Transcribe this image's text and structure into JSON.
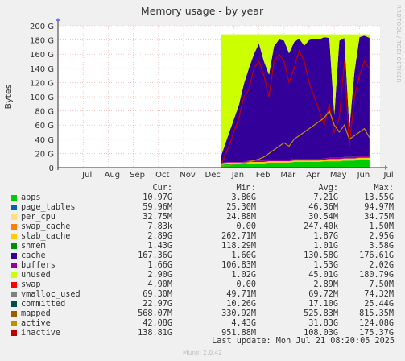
{
  "chart_data": {
    "type": "area",
    "title": "Memory usage - by year",
    "ylabel": "Bytes",
    "ylim": [
      0,
      200
    ],
    "y_ticks": [
      "0",
      "20 G",
      "40 G",
      "60 G",
      "80 G",
      "100 G",
      "120 G",
      "140 G",
      "160 G",
      "180 G",
      "200 G"
    ],
    "x_ticks": [
      "Jul",
      "Aug",
      "Sep",
      "Oct",
      "Nov",
      "Dec",
      "Jan",
      "Feb",
      "Mar",
      "Apr",
      "May",
      "Jun",
      "Jul"
    ],
    "stacked_series": [
      "apps",
      "page_tables",
      "per_cpu",
      "swap_cache",
      "slab_cache",
      "shmem",
      "cache",
      "buffers",
      "unused",
      "swap"
    ],
    "line_series": [
      "vmalloc_used",
      "committed",
      "mapped",
      "active",
      "inactive"
    ],
    "x_months": [
      6.5,
      6.8,
      7.0,
      7.2,
      7.4,
      7.6,
      7.8,
      8.0,
      8.2,
      8.4,
      8.6,
      8.8,
      9.0,
      9.2,
      9.4,
      9.6,
      9.8,
      10.0,
      10.2,
      10.4,
      10.6,
      10.8,
      11.0,
      11.2,
      11.4,
      11.6,
      11.8,
      12.0,
      12.2,
      12.4
    ],
    "series_values": {
      "apps": [
        4,
        5,
        5,
        5,
        5,
        6,
        6,
        6,
        6,
        7,
        7,
        7,
        7,
        7,
        8,
        8,
        8,
        8,
        8,
        8,
        9,
        9,
        9,
        9,
        10,
        10,
        10,
        11,
        11,
        11
      ],
      "slab_cache": [
        2,
        2,
        2,
        2,
        2,
        2,
        2,
        2,
        2,
        2,
        2,
        2,
        2,
        2,
        2,
        2,
        2,
        2,
        2,
        2,
        2,
        3,
        3,
        3,
        3,
        3,
        3,
        3,
        3,
        3
      ],
      "buffers": [
        1,
        1,
        1,
        1,
        1,
        2,
        2,
        2,
        2,
        2,
        2,
        2,
        2,
        2,
        2,
        2,
        2,
        2,
        2,
        2,
        2,
        2,
        2,
        2,
        2,
        2,
        2,
        2,
        2,
        2
      ],
      "cache": [
        10,
        40,
        60,
        80,
        110,
        130,
        150,
        165,
        140,
        120,
        160,
        170,
        168,
        150,
        165,
        170,
        160,
        168,
        170,
        169,
        171,
        169,
        60,
        165,
        168,
        40,
        120,
        168,
        170,
        167
      ],
      "inactive": [
        5,
        30,
        50,
        70,
        100,
        110,
        140,
        150,
        130,
        100,
        150,
        160,
        150,
        120,
        140,
        165,
        150,
        120,
        100,
        80,
        60,
        90,
        50,
        70,
        150,
        30,
        100,
        130,
        150,
        139
      ],
      "active": [
        2,
        3,
        5,
        5,
        6,
        8,
        10,
        12,
        15,
        20,
        25,
        30,
        35,
        30,
        40,
        45,
        50,
        55,
        60,
        65,
        70,
        80,
        60,
        50,
        60,
        40,
        45,
        50,
        55,
        42
      ]
    },
    "total_memory": 188
  },
  "legend": {
    "headers": {
      "cur": "Cur:",
      "min": "Min:",
      "avg": "Avg:",
      "max": "Max:"
    },
    "rows": [
      {
        "name": "apps",
        "color": "#00cc00",
        "cur": "10.97G",
        "min": "3.86G",
        "avg": "7.21G",
        "max": "13.55G"
      },
      {
        "name": "page_tables",
        "color": "#0066b3",
        "cur": "59.96M",
        "min": "25.30M",
        "avg": "46.36M",
        "max": "94.97M"
      },
      {
        "name": "per_cpu",
        "color": "#ffe080",
        "cur": "32.75M",
        "min": "24.88M",
        "avg": "30.54M",
        "max": "34.75M"
      },
      {
        "name": "swap_cache",
        "color": "#ff8000",
        "cur": "7.83k",
        "min": "0.00",
        "avg": "247.40k",
        "max": "1.50M"
      },
      {
        "name": "slab_cache",
        "color": "#ffcc00",
        "cur": "2.89G",
        "min": "262.71M",
        "avg": "1.87G",
        "max": "2.95G"
      },
      {
        "name": "shmem",
        "color": "#008f00",
        "cur": "1.43G",
        "min": "118.29M",
        "avg": "1.01G",
        "max": "3.58G"
      },
      {
        "name": "cache",
        "color": "#330099",
        "cur": "167.36G",
        "min": "1.60G",
        "avg": "130.58G",
        "max": "176.61G"
      },
      {
        "name": "buffers",
        "color": "#990099",
        "cur": "1.66G",
        "min": "106.83M",
        "avg": "1.53G",
        "max": "2.02G"
      },
      {
        "name": "unused",
        "color": "#ccff00",
        "cur": "2.90G",
        "min": "1.02G",
        "avg": "45.01G",
        "max": "180.79G"
      },
      {
        "name": "swap",
        "color": "#ff0000",
        "cur": "4.90M",
        "min": "0.00",
        "avg": "2.89M",
        "max": "7.50M"
      },
      {
        "name": "vmalloc_used",
        "color": "#808080",
        "cur": "69.30M",
        "min": "49.71M",
        "avg": "69.72M",
        "max": "74.32M"
      },
      {
        "name": "committed",
        "color": "#004d4d",
        "cur": "22.97G",
        "min": "10.26G",
        "avg": "17.10G",
        "max": "25.44G"
      },
      {
        "name": "mapped",
        "color": "#a05a00",
        "cur": "568.07M",
        "min": "330.92M",
        "avg": "525.83M",
        "max": "815.35M"
      },
      {
        "name": "active",
        "color": "#bf8f00",
        "cur": "42.08G",
        "min": "4.43G",
        "avg": "31.83G",
        "max": "124.08G"
      },
      {
        "name": "inactive",
        "color": "#bb0000",
        "cur": "138.81G",
        "min": "951.88M",
        "avg": "108.03G",
        "max": "175.37G"
      }
    ]
  },
  "last_update": "Last update: Mon Jul 21 08:20:05 2025",
  "side_label": "RRDTOOL / TOBI OETIKER",
  "footer": "Munin 2.0.42"
}
